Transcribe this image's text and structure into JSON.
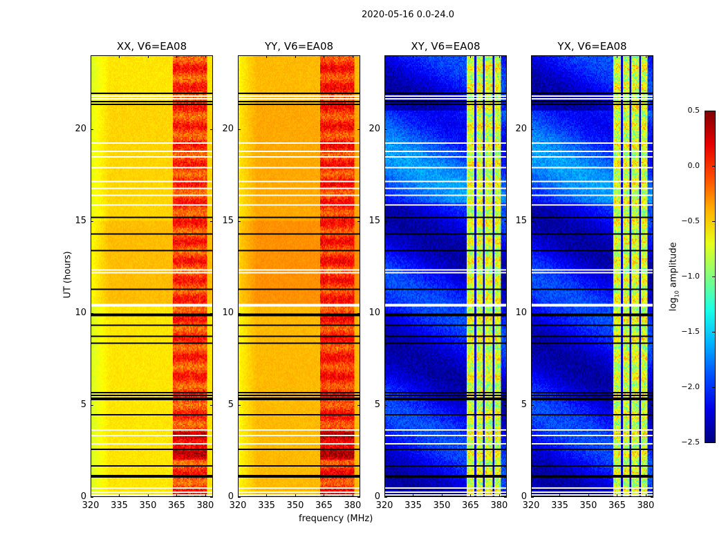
{
  "chart_data": {
    "type": "heatmap",
    "title": "2020-05-16 0.0-24.0",
    "xlabel": "frequency (MHz)",
    "ylabel": "UT (hours)",
    "xlim": [
      320,
      384
    ],
    "ylim": [
      0,
      24
    ],
    "xticks": [
      "320",
      "335",
      "350",
      "365",
      "380"
    ],
    "yticks": [
      "0",
      "5",
      "10",
      "15",
      "20"
    ],
    "panels": [
      {
        "title": "XX, V6=EA08",
        "base_level": -0.55,
        "rfi_level": -0.05
      },
      {
        "title": "YY, V6=EA08",
        "base_level": -0.42,
        "rfi_level": 0.0
      },
      {
        "title": "XY, V6=EA08",
        "base_level": -2.15,
        "rfi_level": -0.75
      },
      {
        "title": "YX, V6=EA08",
        "base_level": -2.15,
        "rfi_level": -0.75
      }
    ],
    "rfi_band_mhz": [
      363,
      381
    ],
    "flagged_hours_black": [
      22.0,
      21.5,
      21.4,
      15.2,
      14.3,
      13.4,
      11.3,
      10.0,
      9.9,
      9.4,
      8.8,
      8.4,
      5.7,
      5.55,
      5.4,
      5.3,
      4.5,
      2.6,
      1.7,
      1.2,
      1.1
    ],
    "flagged_hours_white": [
      21.8,
      21.7,
      19.3,
      18.8,
      18.5,
      17.9,
      17.2,
      16.8,
      16.4,
      15.9,
      12.4,
      12.2,
      10.5,
      10.4,
      3.7,
      3.4,
      2.9,
      0.5,
      0.3,
      0.15
    ],
    "colorbar": {
      "label": "log10 amplitude",
      "colormap": "jet",
      "range": [
        -2.5,
        0.5
      ],
      "ticks": [
        "0.5",
        "0.0",
        "−0.5",
        "−1.0",
        "−1.5",
        "−2.0",
        "−2.5"
      ]
    }
  }
}
